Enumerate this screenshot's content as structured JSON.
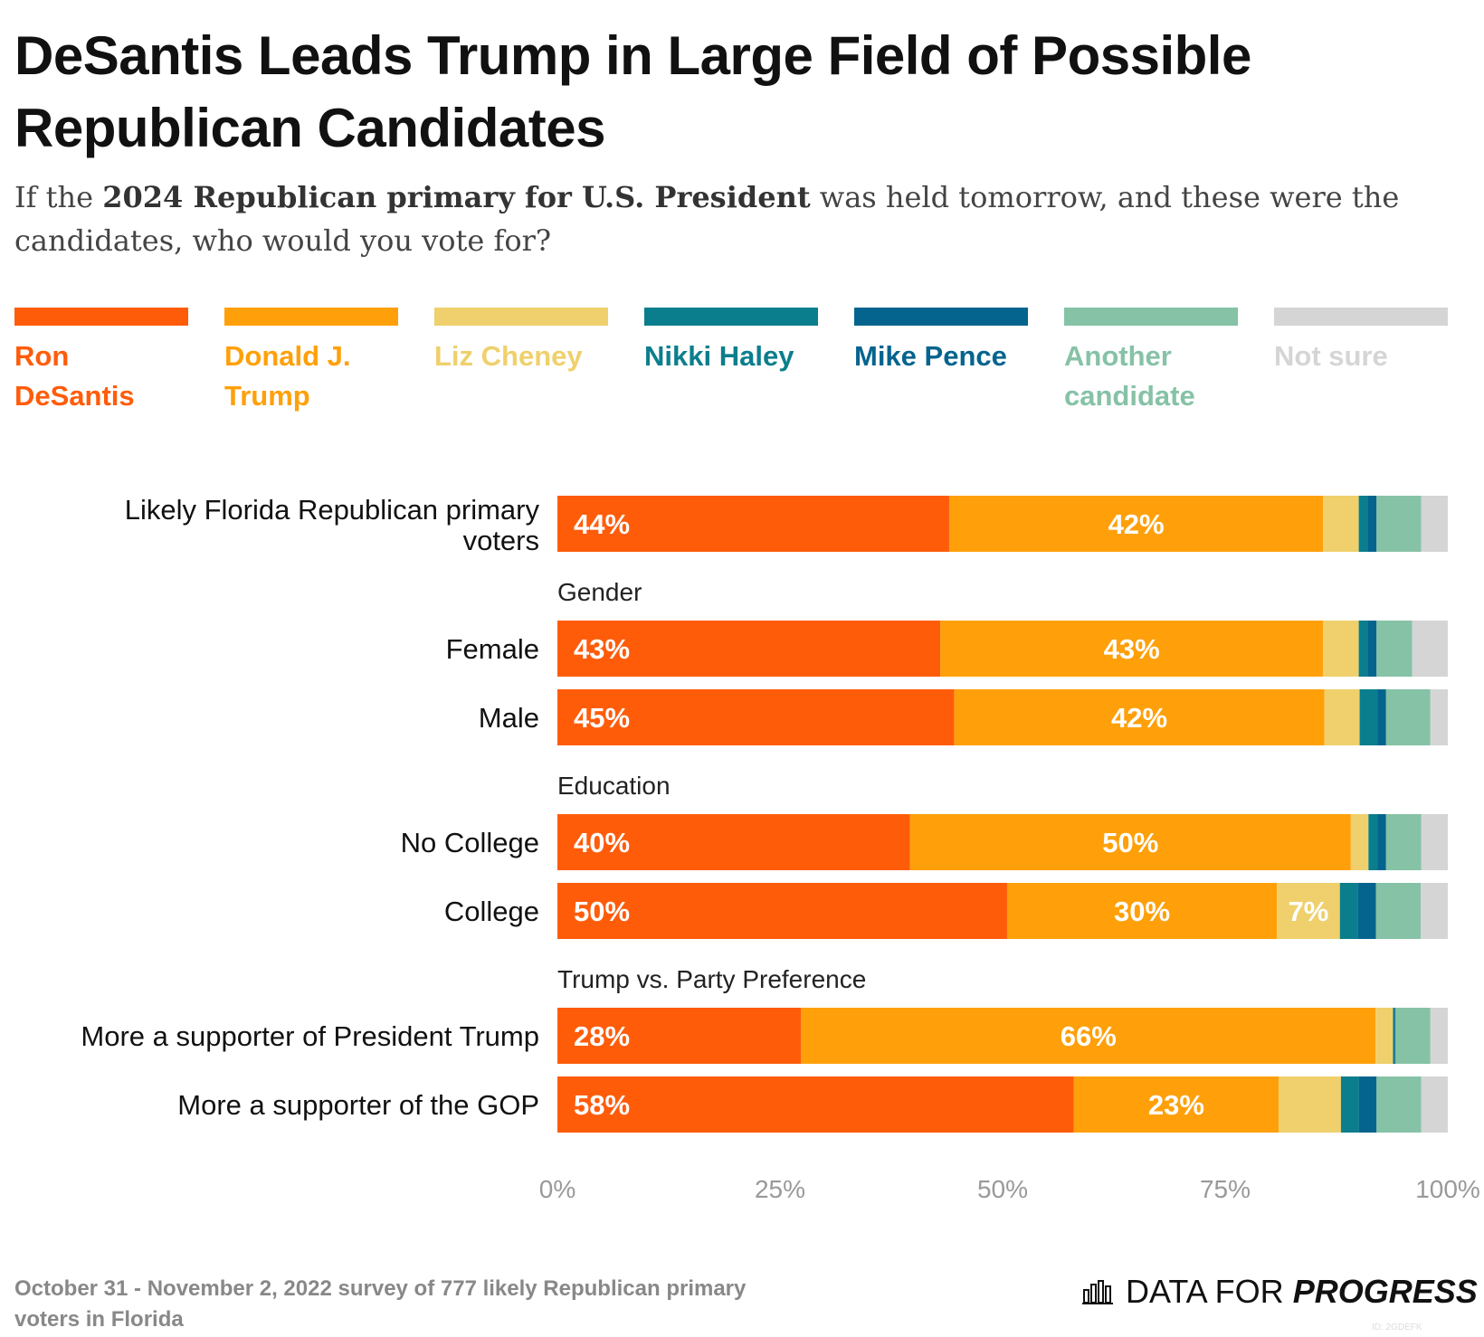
{
  "title": "DeSantis Leads Trump in Large Field of Possible Republican Candidates",
  "subtitle": {
    "pre": "If the ",
    "bold": "2024 Republican primary for U.S. President",
    "post": " was held tomorrow, and these were the candidates, who would you vote for?"
  },
  "legend": [
    {
      "label": "Ron DeSantis",
      "color": "#ff5c0a"
    },
    {
      "label": "Donald J. Trump",
      "color": "#ffa00a"
    },
    {
      "label": "Liz Cheney",
      "color": "#efd06c"
    },
    {
      "label": "Nikki Haley",
      "color": "#0b7e8d"
    },
    {
      "label": "Mike Pence",
      "color": "#05648e"
    },
    {
      "label": "Another candidate",
      "color": "#86c2a6"
    },
    {
      "label": "Not sure",
      "color": "#d5d5d5"
    }
  ],
  "chart_data": {
    "type": "bar",
    "orientation": "horizontal",
    "stacked": true,
    "unit": "%",
    "xlim": [
      0,
      100
    ],
    "x_ticks": [
      "0%",
      "25%",
      "50%",
      "75%",
      "100%"
    ],
    "series_names": [
      "Ron DeSantis",
      "Donald J. Trump",
      "Liz Cheney",
      "Nikki Haley",
      "Mike Pence",
      "Another candidate",
      "Not sure"
    ],
    "groups": [
      {
        "heading": "",
        "rows": [
          {
            "label": "Likely Florida Republican primary voters",
            "values": [
              44,
              42,
              4,
              1,
              1,
              5,
              3
            ]
          }
        ]
      },
      {
        "heading": "Gender",
        "rows": [
          {
            "label": "Female",
            "values": [
              43,
              43,
              4,
              1,
              1,
              4,
              4
            ]
          },
          {
            "label": "Male",
            "values": [
              45,
              42,
              4,
              2,
              1,
              5,
              2
            ]
          }
        ]
      },
      {
        "heading": "Education",
        "rows": [
          {
            "label": "No College",
            "values": [
              40,
              50,
              2,
              1,
              1,
              4,
              3
            ]
          },
          {
            "label": "College",
            "values": [
              50,
              30,
              7,
              2,
              2,
              5,
              3
            ]
          }
        ]
      },
      {
        "heading": "Trump vs. Party Preference",
        "rows": [
          {
            "label": "More a supporter of President Trump",
            "values": [
              28,
              66,
              2,
              0.2,
              0.1,
              4,
              2
            ]
          },
          {
            "label": "More a supporter of the GOP",
            "values": [
              58,
              23,
              7,
              2,
              2,
              5,
              3
            ]
          }
        ]
      }
    ],
    "value_labels": [
      [
        "44%",
        "42%",
        "",
        "",
        "",
        "",
        ""
      ],
      [
        "43%",
        "43%",
        "",
        "",
        "",
        "",
        ""
      ],
      [
        "45%",
        "42%",
        "",
        "",
        "",
        "",
        ""
      ],
      [
        "40%",
        "50%",
        "",
        "",
        "",
        "",
        ""
      ],
      [
        "50%",
        "30%",
        "7%",
        "",
        "",
        "",
        ""
      ],
      [
        "28%",
        "66%",
        "",
        "",
        "",
        "",
        ""
      ],
      [
        "58%",
        "23%",
        "",
        "",
        "",
        "",
        ""
      ]
    ]
  },
  "footer": {
    "note": "October 31 - November 2, 2022 survey of 777 likely Republican primary voters in Florida",
    "brand_pre": "DATA FOR ",
    "brand_bold": "PROGRESS",
    "chart_id": "ID: 2GDEFK"
  }
}
